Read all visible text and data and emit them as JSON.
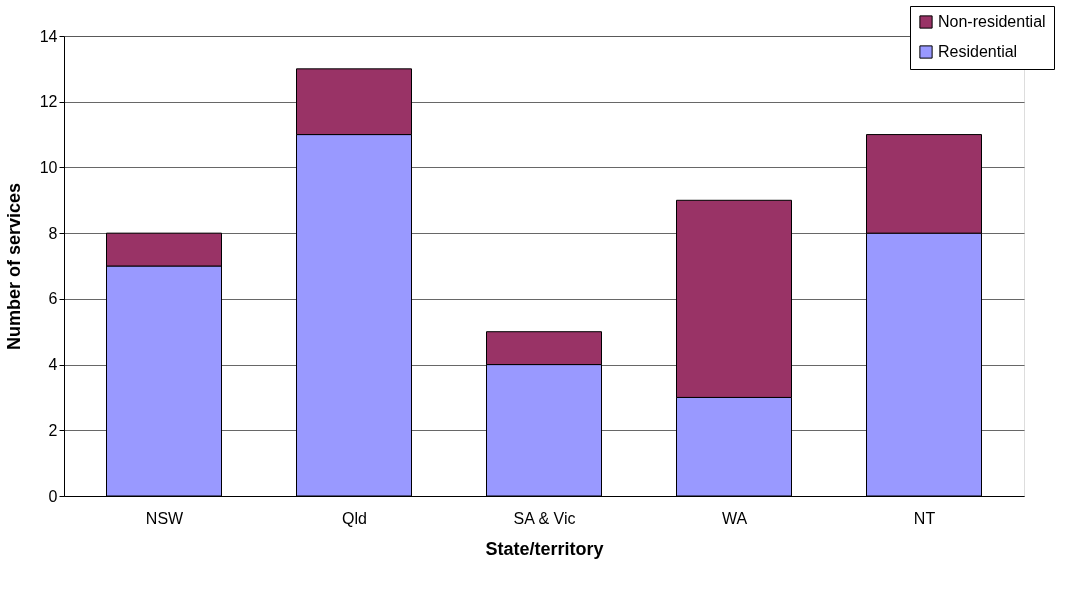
{
  "chart_data": {
    "type": "bar",
    "stacked": true,
    "xlabel": "State/territory",
    "ylabel": "Number of services",
    "categories": [
      "NSW",
      "Qld",
      "SA & Vic",
      "WA",
      "NT"
    ],
    "series": [
      {
        "name": "Residential",
        "color": "#9999ff",
        "values": [
          7,
          11,
          4,
          3,
          8
        ]
      },
      {
        "name": "Non-residential",
        "color": "#993366",
        "values": [
          1,
          2,
          1,
          6,
          3
        ]
      }
    ],
    "ylim": [
      0,
      14
    ],
    "yticks": [
      0,
      2,
      4,
      6,
      8,
      10,
      12,
      14
    ],
    "grid": "y",
    "legend": "top right"
  }
}
